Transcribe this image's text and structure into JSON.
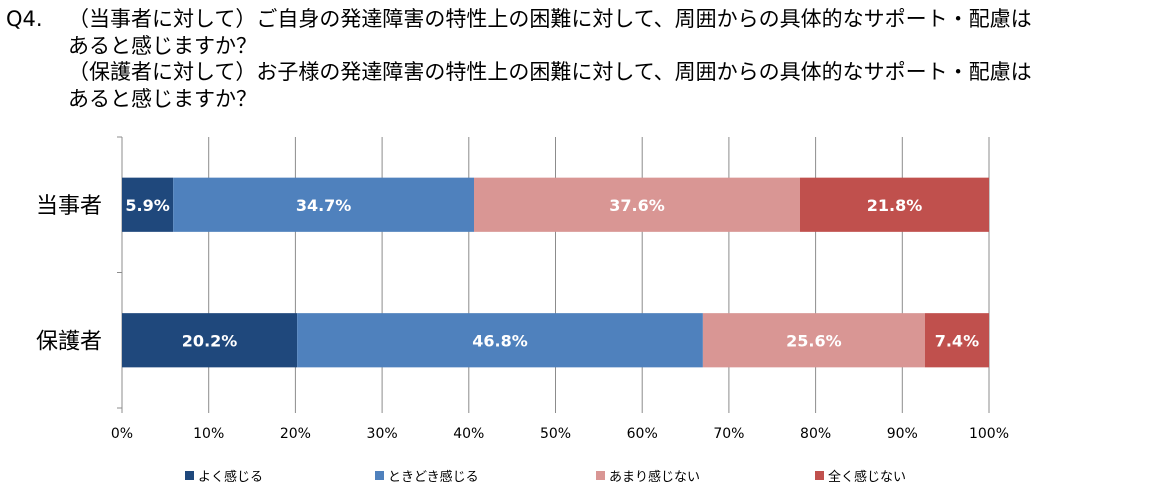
{
  "question": {
    "number": "Q4.",
    "lines": [
      "（当事者に対して）ご自身の発達障害の特性上の困難に対して、周囲からの具体的なサポート・配慮は",
      "あると感じますか？",
      "（保護者に対して）お子様の発達障害の特性上の困難に対して、周囲からの具体的なサポート・配慮は",
      "あると感じますか？"
    ]
  },
  "chart_data": {
    "type": "bar",
    "orientation": "horizontal",
    "stacked": true,
    "categories": [
      "当事者",
      "保護者"
    ],
    "series": [
      {
        "name": "よく感じる",
        "values": [
          5.9,
          20.2
        ],
        "color": "#1f487c"
      },
      {
        "name": "ときどき感じる",
        "values": [
          34.7,
          46.8
        ],
        "color": "#4f81bd"
      },
      {
        "name": "あまり感じない",
        "values": [
          37.6,
          25.6
        ],
        "color": "#d99694"
      },
      {
        "name": "全く感じない",
        "values": [
          21.8,
          7.4
        ],
        "color": "#c0504d"
      }
    ],
    "data_labels": [
      [
        "5.9%",
        "34.7%",
        "37.6%",
        "21.8%"
      ],
      [
        "20.2%",
        "46.8%",
        "25.6%",
        "7.4%"
      ]
    ],
    "xlim": [
      0,
      100
    ],
    "xticks": [
      "0%",
      "10%",
      "20%",
      "30%",
      "40%",
      "50%",
      "60%",
      "70%",
      "80%",
      "90%",
      "100%"
    ],
    "grid": "vertical",
    "legend": "bottom"
  }
}
